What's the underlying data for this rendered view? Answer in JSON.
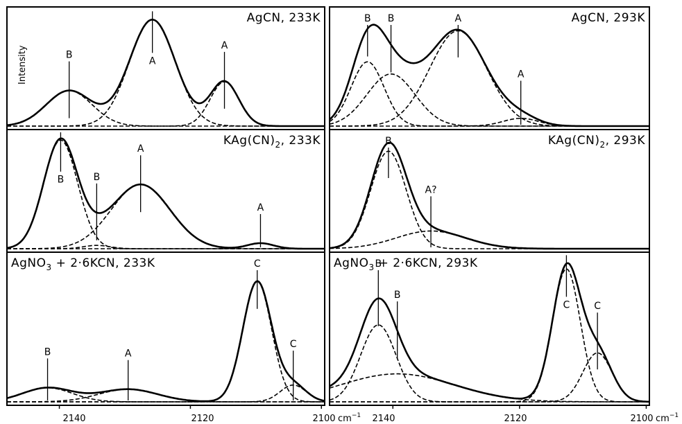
{
  "figure": {
    "ylabel": "Intensity"
  },
  "x_axis": {
    "left_ticks": [
      "2140",
      "2120",
      "2100"
    ],
    "right_ticks": [
      "2140",
      "2120",
      "2100"
    ],
    "unit": "cm",
    "unit_exp": "−1"
  },
  "chart_data": [
    {
      "type": "line",
      "panel": "AgCN, 233K",
      "title_parts": [
        "AgCN, 233K"
      ],
      "xlim": [
        2148,
        2099.5
      ],
      "ylim": [
        0,
        1.05
      ],
      "peaks": [
        {
          "label": "B",
          "center": 2138.5,
          "height": 0.32,
          "width": 3.5
        },
        {
          "label": "A",
          "center": 2125.8,
          "height": 0.96,
          "width": 3.5
        },
        {
          "label": "A",
          "center": 2114.8,
          "height": 0.4,
          "width": 2.2
        }
      ],
      "markers": [
        {
          "label": "B",
          "x": 2138.5,
          "label_pos": "above"
        },
        {
          "label": "A",
          "x": 2125.8,
          "label_pos": "below"
        },
        {
          "label": "A",
          "x": 2114.8,
          "label_pos": "above"
        }
      ]
    },
    {
      "type": "line",
      "panel": "KAg(CN)2, 233K",
      "title_parts": [
        "KAg(CN)",
        "2",
        ", 233K"
      ],
      "xlim": [
        2148,
        2099.5
      ],
      "ylim": [
        0,
        1.05
      ],
      "peaks": [
        {
          "label": "B",
          "center": 2139.8,
          "height": 0.98,
          "width": 2.6
        },
        {
          "label": "B",
          "center": 2134.3,
          "height": 0.03,
          "width": 2.0
        },
        {
          "label": "A",
          "center": 2127.6,
          "height": 0.58,
          "width": 4.5
        },
        {
          "label": "A",
          "center": 2109.3,
          "height": 0.05,
          "width": 2.0
        }
      ],
      "markers": [
        {
          "label": "B",
          "x": 2139.8,
          "label_pos": "below"
        },
        {
          "label": "B",
          "x": 2134.3,
          "label_pos": "above"
        },
        {
          "label": "A",
          "x": 2127.6,
          "label_pos": "above"
        },
        {
          "label": "A",
          "x": 2109.3,
          "label_pos": "above"
        }
      ]
    },
    {
      "type": "line",
      "panel": "AgNO3 + 2·6KCN, 233K",
      "title_parts": [
        "AgNO",
        "3",
        " + 2·6KCN, 233K"
      ],
      "xlim": [
        2148,
        2099.5
      ],
      "ylim": [
        0,
        1.05
      ],
      "peaks": [
        {
          "label": "B",
          "center": 2141.8,
          "height": 0.1,
          "width": 3.8
        },
        {
          "label": "A",
          "center": 2129.5,
          "height": 0.09,
          "width": 4.5
        },
        {
          "label": "C",
          "center": 2109.8,
          "height": 0.86,
          "width": 2.2
        },
        {
          "label": "C",
          "center": 2104.3,
          "height": 0.12,
          "width": 2.0
        }
      ],
      "markers": [
        {
          "label": "B",
          "x": 2141.8,
          "label_pos": "above"
        },
        {
          "label": "A",
          "x": 2129.5,
          "label_pos": "above"
        },
        {
          "label": "C",
          "x": 2109.8,
          "label_pos": "above"
        },
        {
          "label": "C",
          "x": 2104.3,
          "label_pos": "above"
        }
      ]
    },
    {
      "type": "line",
      "panel": "AgCN, 293K",
      "title_parts": [
        "AgCN, 293K"
      ],
      "xlim": [
        2150,
        2099.5
      ],
      "ylim": [
        0,
        1.05
      ],
      "peaks": [
        {
          "label": "B",
          "center": 2144.0,
          "height": 0.58,
          "width": 2.6
        },
        {
          "label": "B",
          "center": 2140.3,
          "height": 0.47,
          "width": 3.8
        },
        {
          "label": "A",
          "center": 2129.7,
          "height": 0.86,
          "width": 4.5
        },
        {
          "label": "A",
          "center": 2119.8,
          "height": 0.07,
          "width": 2.8
        }
      ],
      "markers": [
        {
          "label": "B",
          "x": 2144.0,
          "label_pos": "above"
        },
        {
          "label": "B",
          "x": 2140.3,
          "label_pos": "above"
        },
        {
          "label": "A",
          "x": 2129.7,
          "label_pos": "above"
        },
        {
          "label": "A",
          "x": 2119.8,
          "label_pos": "above"
        }
      ]
    },
    {
      "type": "line",
      "panel": "KAg(CN)2, 293K",
      "title_parts": [
        "KAg(CN)",
        "2",
        ", 293K"
      ],
      "xlim": [
        2150,
        2099.5
      ],
      "ylim": [
        0,
        1.05
      ],
      "peaks": [
        {
          "label": "B",
          "center": 2140.7,
          "height": 0.88,
          "width": 2.8
        },
        {
          "label": "A?",
          "center": 2134.0,
          "height": 0.16,
          "width": 5.5
        }
      ],
      "markers": [
        {
          "label": "B",
          "x": 2140.7,
          "label_pos": "above"
        },
        {
          "label": "A?",
          "x": 2134.0,
          "label_pos": "above"
        }
      ]
    },
    {
      "type": "line",
      "panel": "AgNO3 + 2·6KCN, 293K",
      "title_parts": [
        "AgNO",
        "3",
        " + 2·6KCN, 293K"
      ],
      "xlim": [
        2150,
        2099.5
      ],
      "ylim": [
        0,
        1.05
      ],
      "peaks": [
        {
          "label": "B",
          "center": 2142.3,
          "height": 0.55,
          "width": 2.8
        },
        {
          "label": "B",
          "center": 2139.3,
          "height": 0.2,
          "width": 9.0
        },
        {
          "label": "C",
          "center": 2112.6,
          "height": 0.95,
          "width": 2.2
        },
        {
          "label": "C",
          "center": 2107.7,
          "height": 0.35,
          "width": 2.3
        }
      ],
      "markers": [
        {
          "label": "B",
          "x": 2142.3,
          "label_pos": "above"
        },
        {
          "label": "B",
          "x": 2139.3,
          "label_pos": "above"
        },
        {
          "label": "C",
          "x": 2112.6,
          "label_pos": "below"
        },
        {
          "label": "C",
          "x": 2107.7,
          "label_pos": "above"
        }
      ]
    }
  ]
}
